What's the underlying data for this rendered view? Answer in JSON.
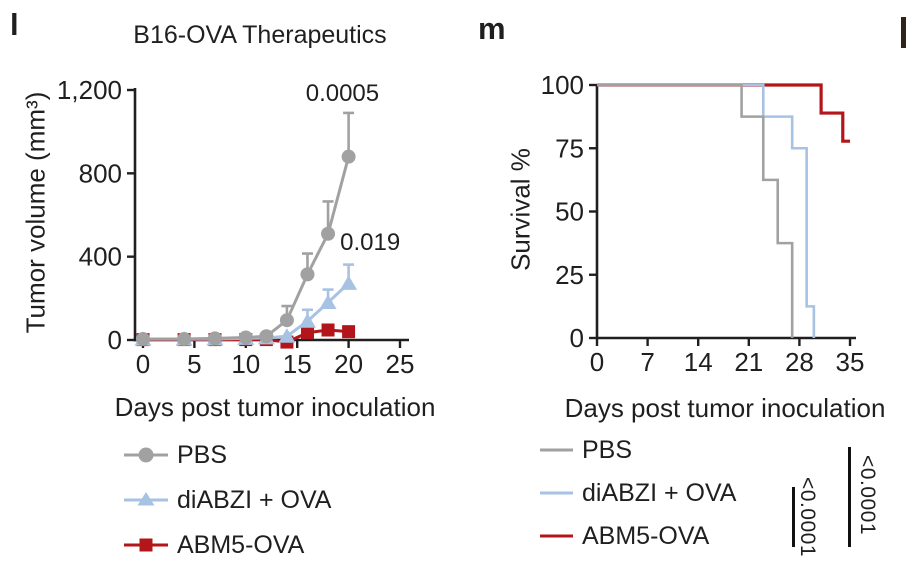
{
  "figure": {
    "panel_l_letter": "l",
    "panel_m_letter": "m"
  },
  "colors": {
    "pbs_gray": "#a1a1a1",
    "diabzi_blue": "#a7c2e2",
    "abm5_red": "#b2161b",
    "axis": "#1f1f1f",
    "text": "#1f1f1f",
    "significance_bar": "#111111",
    "clipped_letter": "#2e2418"
  },
  "chart_data": [
    {
      "panel": "l",
      "type": "line",
      "title": "B16-OVA Therapeutics",
      "xlabel": "Days post tumor inoculation",
      "ylabel": "Tumor volume (mm³)",
      "xlim": [
        0,
        26
      ],
      "ylim": [
        0,
        1200
      ],
      "xticks": [
        0,
        5,
        10,
        15,
        20,
        25
      ],
      "xtick_labels": [
        "0",
        "5",
        "10",
        "15",
        "20",
        "25"
      ],
      "yticks": [
        0,
        400,
        800,
        1200
      ],
      "ytick_labels": [
        "0",
        "400",
        "800",
        "1,200"
      ],
      "grid": false,
      "legend_position": "below",
      "draw_order": [
        2,
        1,
        0
      ],
      "series": [
        {
          "name": "PBS",
          "marker": "circle",
          "color": "#a1a1a1",
          "x": [
            0,
            4,
            7,
            10,
            12,
            14,
            16,
            18,
            20
          ],
          "y": [
            5,
            5,
            8,
            12,
            18,
            95,
            315,
            510,
            880
          ],
          "err_up": [
            0,
            0,
            0,
            0,
            14,
            68,
            100,
            155,
            210
          ]
        },
        {
          "name": "diABZI + OVA",
          "marker": "triangle",
          "color": "#a7c2e2",
          "x": [
            0,
            4,
            7,
            10,
            12,
            14,
            16,
            18,
            20
          ],
          "y": [
            4,
            4,
            5,
            8,
            10,
            18,
            90,
            180,
            272
          ],
          "err_up": [
            0,
            0,
            0,
            0,
            0,
            0,
            55,
            62,
            90
          ]
        },
        {
          "name": "ABM5-OVA",
          "marker": "square",
          "color": "#b2161b",
          "x": [
            0,
            4,
            7,
            10,
            12,
            14,
            16,
            18,
            20
          ],
          "y": [
            2,
            2,
            2,
            2,
            2,
            -10,
            35,
            48,
            40
          ],
          "err_up": [
            0,
            0,
            0,
            0,
            0,
            0,
            0,
            0,
            0
          ]
        }
      ],
      "annotations": [
        {
          "text": "0.0005",
          "x": 19.4,
          "y": 1185
        },
        {
          "text": "0.019",
          "x": 22.1,
          "y": 470
        }
      ]
    },
    {
      "panel": "m",
      "type": "step",
      "title": "",
      "xlabel": "Days post tumor inoculation",
      "ylabel": "Survival %",
      "xlim": [
        0,
        35.8
      ],
      "ylim": [
        0,
        100
      ],
      "xticks": [
        0,
        7,
        14,
        21,
        28,
        35
      ],
      "xtick_labels": [
        "0",
        "7",
        "14",
        "21",
        "28",
        "35"
      ],
      "yticks": [
        0,
        25,
        50,
        75,
        100
      ],
      "ytick_labels": [
        "0",
        "25",
        "50",
        "75",
        "100"
      ],
      "grid": false,
      "legend_position": "below",
      "draw_order": [
        2,
        1,
        0
      ],
      "series": [
        {
          "name": "PBS",
          "color": "#a1a1a1",
          "width": 2.6,
          "points": [
            [
              0,
              100
            ],
            [
              20,
              100
            ],
            [
              20,
              87.5
            ],
            [
              23,
              87.5
            ],
            [
              23,
              62.5
            ],
            [
              25,
              62.5
            ],
            [
              25,
              37.5
            ],
            [
              27,
              37.5
            ],
            [
              27,
              0
            ]
          ]
        },
        {
          "name": "diABZI + OVA",
          "color": "#a7c2e2",
          "width": 2.6,
          "points": [
            [
              0,
              100
            ],
            [
              23,
              100
            ],
            [
              23,
              87.5
            ],
            [
              27,
              87.5
            ],
            [
              27,
              75
            ],
            [
              29,
              75
            ],
            [
              29,
              12.5
            ],
            [
              30,
              12.5
            ],
            [
              30,
              0
            ]
          ]
        },
        {
          "name": "ABM5-OVA",
          "color": "#b2161b",
          "width": 3.2,
          "points": [
            [
              0,
              100
            ],
            [
              31,
              100
            ],
            [
              31,
              88.9
            ],
            [
              34,
              88.9
            ],
            [
              34,
              77.8
            ],
            [
              35,
              77.8
            ]
          ]
        }
      ],
      "significance": [
        {
          "text": "<0.0001",
          "between": "diABZI + OVA vs ABM5-OVA"
        },
        {
          "text": "<0.0001",
          "between": "PBS vs ABM5-OVA"
        }
      ]
    }
  ]
}
